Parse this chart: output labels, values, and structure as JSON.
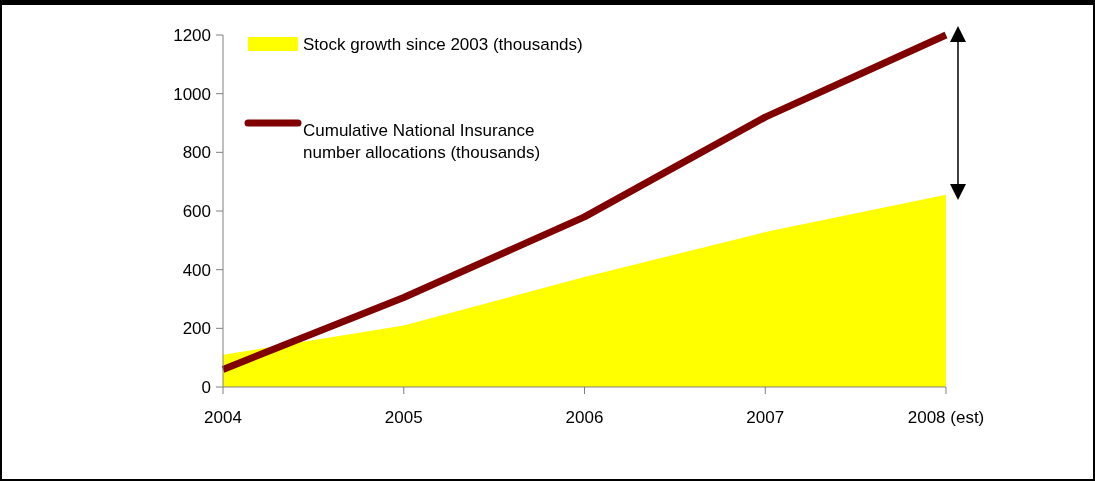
{
  "chart_data": {
    "type": "line",
    "categories": [
      "2004",
      "2005",
      "2006",
      "2007",
      "2008 (est)"
    ],
    "series": [
      {
        "type": "area",
        "name": "Stock growth since 2003 (thousands)",
        "color": "#ffff00",
        "values": [
          110,
          210,
          375,
          528,
          655
        ]
      },
      {
        "name": "Cumulative National Insurance number allocations (thousands)",
        "color": "#800000",
        "values": [
          60,
          305,
          580,
          920,
          1200
        ]
      }
    ],
    "ylim": [
      0,
      1200
    ],
    "yticks": [
      0,
      200,
      400,
      600,
      800,
      1000,
      1200
    ],
    "grid": false,
    "legend": "top left",
    "marker": "none",
    "line_style": "solid"
  }
}
